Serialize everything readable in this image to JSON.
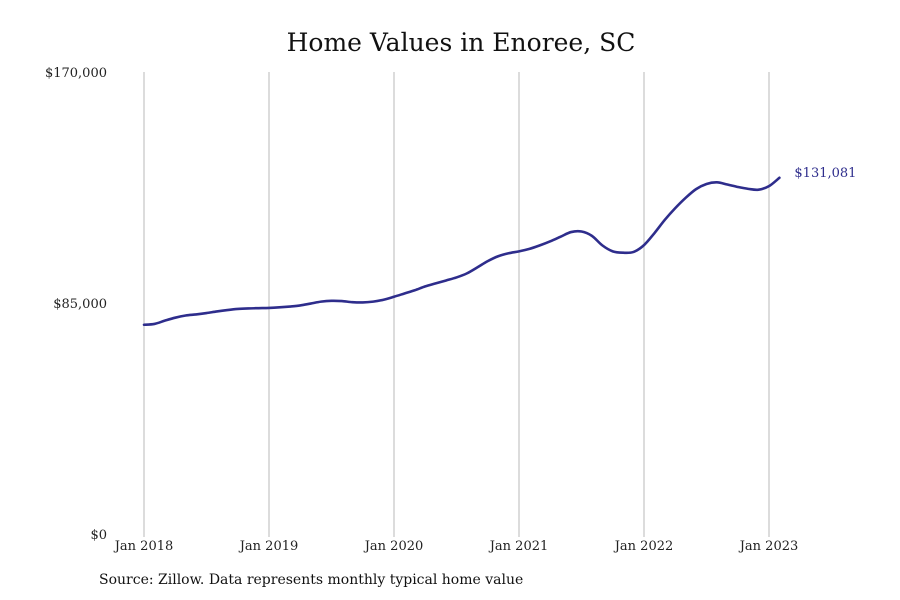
{
  "chart_data": {
    "type": "line",
    "title": "Home Values in Enoree, SC",
    "xlabel": "",
    "ylabel": "",
    "ylim": [
      0,
      170000
    ],
    "yticks": [
      {
        "value": 0,
        "label": "$0"
      },
      {
        "value": 85000,
        "label": "$85,000"
      },
      {
        "value": 170000,
        "label": "$170,000"
      }
    ],
    "xticks": [
      {
        "value": "2018-01",
        "label": "Jan 2018"
      },
      {
        "value": "2019-01",
        "label": "Jan 2019"
      },
      {
        "value": "2020-01",
        "label": "Jan 2020"
      },
      {
        "value": "2021-01",
        "label": "Jan 2021"
      },
      {
        "value": "2022-01",
        "label": "Jan 2022"
      },
      {
        "value": "2023-01",
        "label": "Jan 2023"
      }
    ],
    "grid": "vertical",
    "series": [
      {
        "color": "#2e2d8c",
        "end_label": "$131,081",
        "x": [
          "2018-01",
          "2018-02",
          "2018-03",
          "2018-04",
          "2018-05",
          "2018-06",
          "2018-07",
          "2018-08",
          "2018-09",
          "2018-10",
          "2018-11",
          "2018-12",
          "2019-01",
          "2019-02",
          "2019-03",
          "2019-04",
          "2019-05",
          "2019-06",
          "2019-07",
          "2019-08",
          "2019-09",
          "2019-10",
          "2019-11",
          "2019-12",
          "2020-01",
          "2020-02",
          "2020-03",
          "2020-04",
          "2020-05",
          "2020-06",
          "2020-07",
          "2020-08",
          "2020-09",
          "2020-10",
          "2020-11",
          "2020-12",
          "2021-01",
          "2021-02",
          "2021-03",
          "2021-04",
          "2021-05",
          "2021-06",
          "2021-07",
          "2021-08",
          "2021-09",
          "2021-10",
          "2021-11",
          "2021-12",
          "2022-01",
          "2022-02",
          "2022-03",
          "2022-04",
          "2022-05",
          "2022-06",
          "2022-07",
          "2022-08",
          "2022-09",
          "2022-10",
          "2022-11",
          "2022-12",
          "2023-01",
          "2023-02"
        ],
        "values": [
          77000,
          77300,
          78500,
          79600,
          80400,
          80800,
          81300,
          81900,
          82400,
          82800,
          83000,
          83100,
          83200,
          83400,
          83700,
          84100,
          84800,
          85500,
          85800,
          85700,
          85300,
          85200,
          85500,
          86200,
          87300,
          88500,
          89700,
          91100,
          92200,
          93300,
          94400,
          95900,
          98100,
          100400,
          102200,
          103300,
          104000,
          104900,
          106200,
          107700,
          109400,
          111100,
          111300,
          109700,
          106200,
          104000,
          103500,
          103800,
          106300,
          110700,
          115600,
          119900,
          123700,
          126900,
          128800,
          129400,
          128600,
          127700,
          127000,
          126700,
          128000,
          131081
        ]
      }
    ]
  },
  "source_note": "Source: Zillow. Data represents monthly typical home value"
}
